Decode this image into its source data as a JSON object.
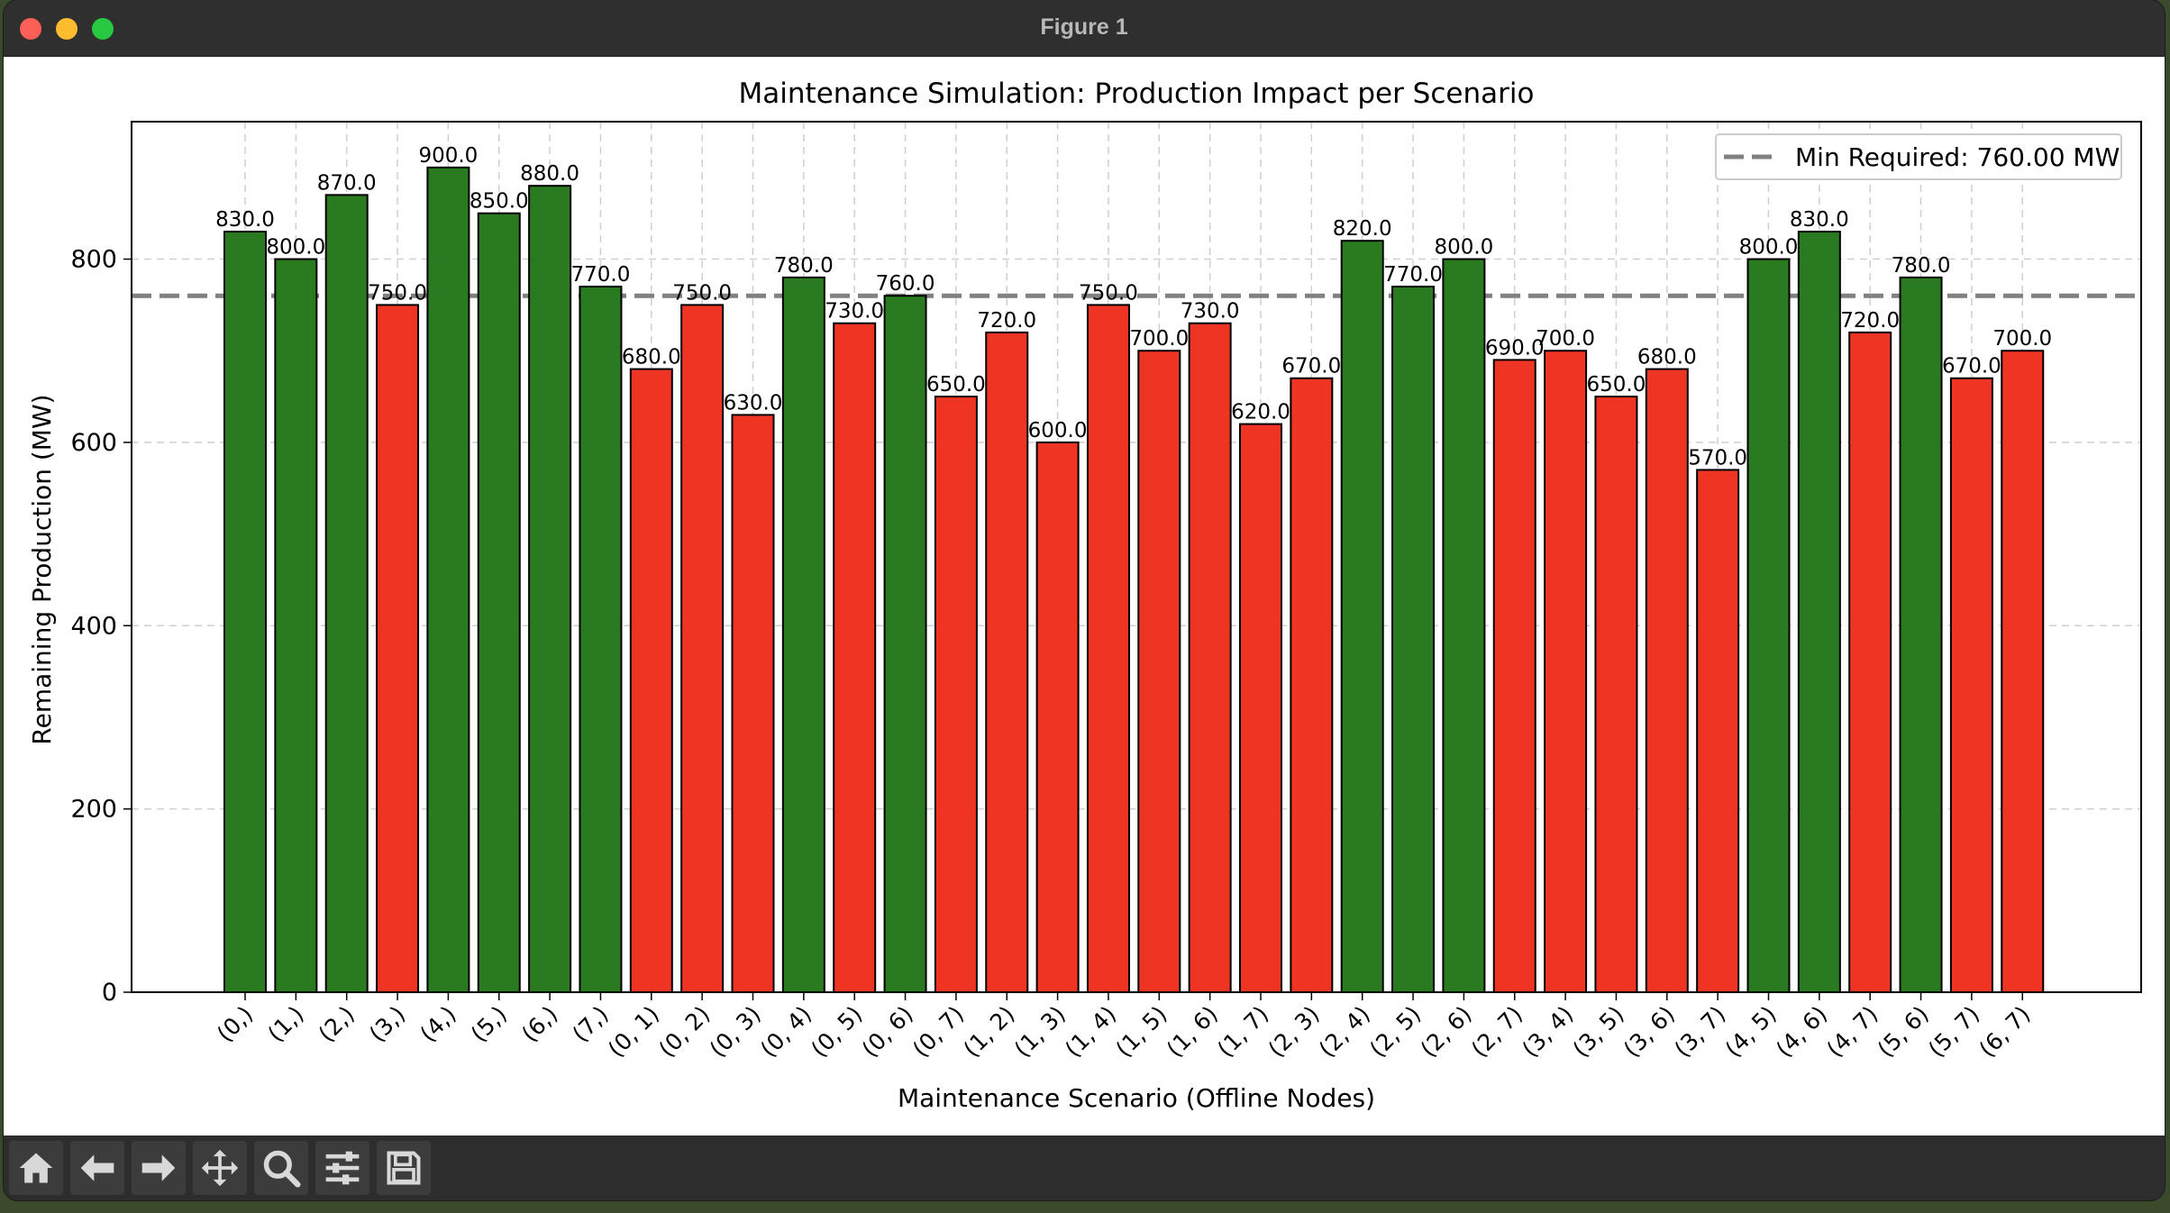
{
  "window": {
    "title": "Figure 1"
  },
  "toolbar": {
    "buttons": [
      "home-icon",
      "back-arrow-icon",
      "forward-arrow-icon",
      "pan-icon",
      "zoom-icon",
      "configure-subplots-icon",
      "save-icon"
    ]
  },
  "colors": {
    "above": "#2a7a1f",
    "below": "#ee3524",
    "edge": "#000000",
    "threshold": "#808080"
  },
  "chart_data": {
    "type": "bar",
    "title": "Maintenance Simulation: Production Impact per Scenario",
    "xlabel": "Maintenance Scenario (Offline Nodes)",
    "ylabel": "Remaining Production (MW)",
    "ylim": [
      0,
      950
    ],
    "yticks": [
      0,
      200,
      400,
      600,
      800
    ],
    "grid": true,
    "legend": {
      "position": "top-right",
      "label": "Min Required: 760.00 MW"
    },
    "threshold": 760,
    "categories": [
      "(0,)",
      "(1,)",
      "(2,)",
      "(3,)",
      "(4,)",
      "(5,)",
      "(6,)",
      "(7,)",
      "(0, 1)",
      "(0, 2)",
      "(0, 3)",
      "(0, 4)",
      "(0, 5)",
      "(0, 6)",
      "(0, 7)",
      "(1, 2)",
      "(1, 3)",
      "(1, 4)",
      "(1, 5)",
      "(1, 6)",
      "(1, 7)",
      "(2, 3)",
      "(2, 4)",
      "(2, 5)",
      "(2, 6)",
      "(2, 7)",
      "(3, 4)",
      "(3, 5)",
      "(3, 6)",
      "(3, 7)",
      "(4, 5)",
      "(4, 6)",
      "(4, 7)",
      "(5, 6)",
      "(5, 7)",
      "(6, 7)"
    ],
    "values": [
      830,
      800,
      870,
      750,
      900,
      850,
      880,
      770,
      680,
      750,
      630,
      780,
      730,
      760,
      650,
      720,
      600,
      750,
      700,
      730,
      620,
      670,
      820,
      770,
      800,
      690,
      700,
      650,
      680,
      570,
      800,
      830,
      720,
      780,
      670,
      700
    ],
    "data_labels": [
      "830.0",
      "800.0",
      "870.0",
      "750.0",
      "900.0",
      "850.0",
      "880.0",
      "770.0",
      "680.0",
      "750.0",
      "630.0",
      "780.0",
      "730.0",
      "760.0",
      "650.0",
      "720.0",
      "600.0",
      "750.0",
      "700.0",
      "730.0",
      "620.0",
      "670.0",
      "820.0",
      "770.0",
      "800.0",
      "690.0",
      "700.0",
      "650.0",
      "680.0",
      "570.0",
      "800.0",
      "830.0",
      "720.0",
      "780.0",
      "670.0",
      "700.0"
    ]
  }
}
